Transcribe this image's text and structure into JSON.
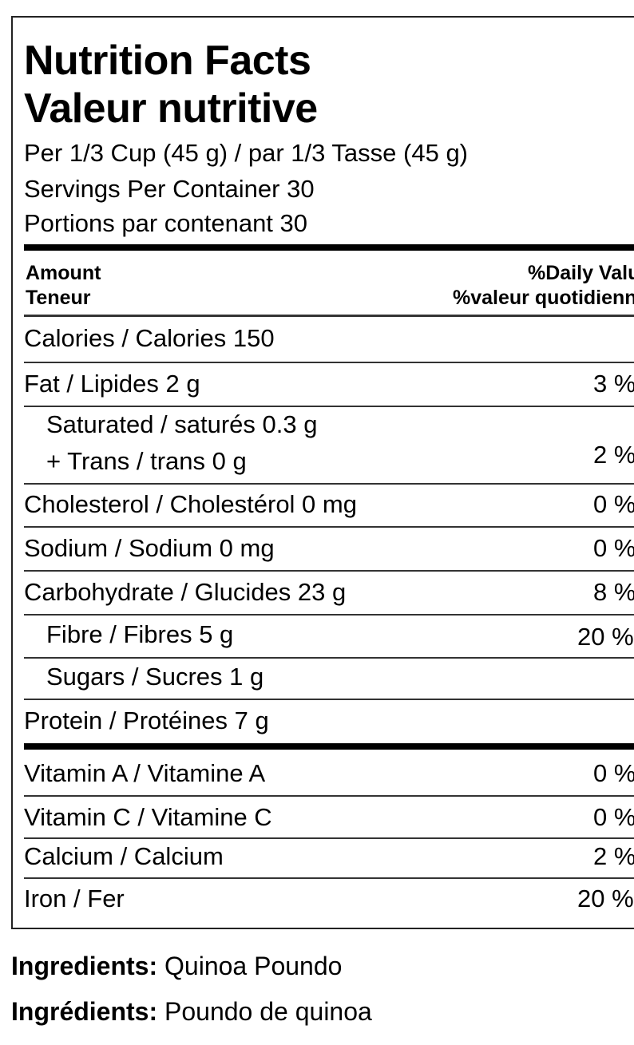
{
  "title_en": "Nutrition Facts",
  "title_fr": "Valeur nutritive",
  "serving": "Per 1/3 Cup (45 g) / par 1/3 Tasse (45 g)",
  "servings_en": "Servings Per Container 30",
  "servings_fr": "Portions par contenant 30",
  "header": {
    "amount_en": "Amount",
    "amount_fr": "Teneur",
    "dv_en": "%Daily Value",
    "dv_fr": "%valeur quotidienne"
  },
  "rows": {
    "calories": {
      "label": "Calories / Calories 150"
    },
    "fat": {
      "label": "Fat / Lipides 2 g",
      "dv": "3 %"
    },
    "saturated": {
      "label": "Saturated / saturés 0.3 g"
    },
    "trans": {
      "label": "+ Trans / trans 0 g",
      "dv": "2 %"
    },
    "cholesterol": {
      "label": "Cholesterol / Cholestérol 0 mg",
      "dv": "0 %"
    },
    "sodium": {
      "label": "Sodium / Sodium 0 mg",
      "dv": "0 %"
    },
    "carbohydrate": {
      "label": "Carbohydrate / Glucides 23 g",
      "dv": "8 %"
    },
    "fibre": {
      "label": "Fibre / Fibres 5 g",
      "dv": "20 %"
    },
    "sugars": {
      "label": "Sugars / Sucres 1 g"
    },
    "protein": {
      "label": "Protein / Protéines 7 g"
    },
    "vitamin_a": {
      "label": "Vitamin A / Vitamine A",
      "dv": "0 %"
    },
    "vitamin_c": {
      "label": "Vitamin C / Vitamine C",
      "dv": "0 %"
    },
    "calcium": {
      "label": "Calcium / Calcium",
      "dv": "2 %"
    },
    "iron": {
      "label": "Iron / Fer",
      "dv": "20 %"
    }
  },
  "ingredients": {
    "en_label": "Ingredients:",
    "en_value": "Quinoa Poundo",
    "fr_label": "Ingrédients:",
    "fr_value": "Poundo de quinoa"
  }
}
